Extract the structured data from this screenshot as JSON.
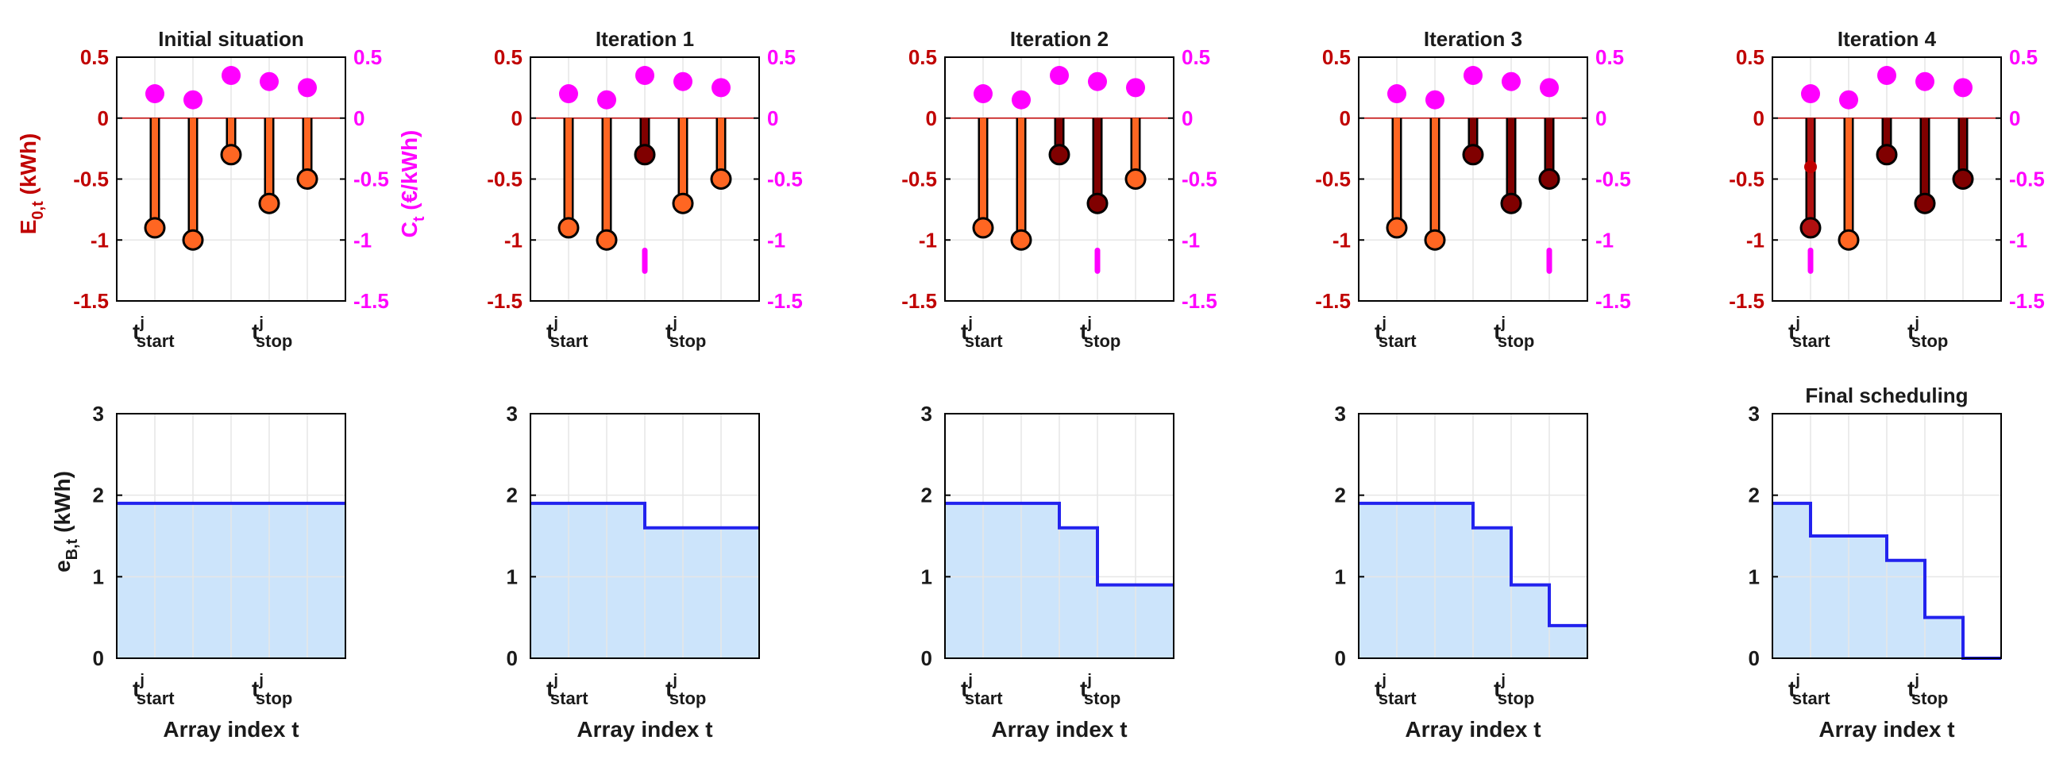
{
  "colors": {
    "energy_axis": "#c00000",
    "price_axis": "#ff00ff",
    "stem_orange": "#ff6622",
    "stem_dark": "#800000",
    "stem_mid": "#b01010",
    "step_line": "#2222ee",
    "area_fill": "#cce4fb",
    "grid": "#e6e6e6"
  },
  "labels": {
    "energy_ylabel_main": "E",
    "energy_ylabel_sub": "0,t",
    "energy_ylabel_unit": " (kWh)",
    "price_ylabel_main": "C",
    "price_ylabel_sub": "t",
    "price_ylabel_unit": " (€/kWh)",
    "battery_ylabel_main": "e",
    "battery_ylabel_sub": "B,t",
    "battery_ylabel_unit": " (kWh)",
    "xlabel": "Array index t",
    "t_letter": "t",
    "t_sup": "j",
    "t_start_sub": "start",
    "t_stop_sub": "stop"
  },
  "chart_data": [
    {
      "panel": "top-1",
      "type": "stem",
      "title": "Initial situation",
      "ylim_left": [
        -1.5,
        0.5
      ],
      "yticks_left": [
        0.5,
        0,
        -0.5,
        -1,
        -1.5
      ],
      "ylim_right": [
        -1.5,
        0.5
      ],
      "yticks_right": [
        0.5,
        0,
        -0.5,
        -1,
        -1.5
      ],
      "x": [
        1,
        2,
        3,
        4,
        5
      ],
      "xlim": [
        0,
        6
      ],
      "energy": [
        -0.9,
        -1.0,
        -0.3,
        -0.7,
        -0.5
      ],
      "energy_state": [
        "orange",
        "orange",
        "orange",
        "orange",
        "orange"
      ],
      "price": [
        0.2,
        0.15,
        0.35,
        0.3,
        0.25
      ],
      "price_marker": null,
      "extra_marker": null
    },
    {
      "panel": "top-2",
      "type": "stem",
      "title": "Iteration 1",
      "ylim_left": [
        -1.5,
        0.5
      ],
      "yticks_left": [
        0.5,
        0,
        -0.5,
        -1,
        -1.5
      ],
      "ylim_right": [
        -1.5,
        0.5
      ],
      "yticks_right": [
        0.5,
        0,
        -0.5,
        -1,
        -1.5
      ],
      "x": [
        1,
        2,
        3,
        4,
        5
      ],
      "xlim": [
        0,
        6
      ],
      "energy": [
        -0.9,
        -1.0,
        -0.3,
        -0.7,
        -0.5
      ],
      "energy_state": [
        "orange",
        "orange",
        "dark",
        "orange",
        "orange"
      ],
      "price": [
        0.2,
        0.15,
        0.35,
        0.3,
        0.25
      ],
      "price_marker": {
        "x": 3,
        "y": -1.17
      },
      "extra_marker": null
    },
    {
      "panel": "top-3",
      "type": "stem",
      "title": "Iteration 2",
      "ylim_left": [
        -1.5,
        0.5
      ],
      "yticks_left": [
        0.5,
        0,
        -0.5,
        -1,
        -1.5
      ],
      "ylim_right": [
        -1.5,
        0.5
      ],
      "yticks_right": [
        0.5,
        0,
        -0.5,
        -1,
        -1.5
      ],
      "x": [
        1,
        2,
        3,
        4,
        5
      ],
      "xlim": [
        0,
        6
      ],
      "energy": [
        -0.9,
        -1.0,
        -0.3,
        -0.7,
        -0.5
      ],
      "energy_state": [
        "orange",
        "orange",
        "dark",
        "dark",
        "orange"
      ],
      "price": [
        0.2,
        0.15,
        0.35,
        0.3,
        0.25
      ],
      "price_marker": {
        "x": 4,
        "y": -1.17
      },
      "extra_marker": null
    },
    {
      "panel": "top-4",
      "type": "stem",
      "title": "Iteration 3",
      "ylim_left": [
        -1.5,
        0.5
      ],
      "yticks_left": [
        0.5,
        0,
        -0.5,
        -1,
        -1.5
      ],
      "ylim_right": [
        -1.5,
        0.5
      ],
      "yticks_right": [
        0.5,
        0,
        -0.5,
        -1,
        -1.5
      ],
      "x": [
        1,
        2,
        3,
        4,
        5
      ],
      "xlim": [
        0,
        6
      ],
      "energy": [
        -0.9,
        -1.0,
        -0.3,
        -0.7,
        -0.5
      ],
      "energy_state": [
        "orange",
        "orange",
        "dark",
        "dark",
        "dark"
      ],
      "price": [
        0.2,
        0.15,
        0.35,
        0.3,
        0.25
      ],
      "price_marker": {
        "x": 5,
        "y": -1.17
      },
      "extra_marker": null
    },
    {
      "panel": "top-5",
      "type": "stem",
      "title": "Iteration 4",
      "ylim_left": [
        -1.5,
        0.5
      ],
      "yticks_left": [
        0.5,
        0,
        -0.5,
        -1,
        -1.5
      ],
      "ylim_right": [
        -1.5,
        0.5
      ],
      "yticks_right": [
        0.5,
        0,
        -0.5,
        -1,
        -1.5
      ],
      "x": [
        1,
        2,
        3,
        4,
        5
      ],
      "xlim": [
        0,
        6
      ],
      "energy": [
        -0.9,
        -1.0,
        -0.3,
        -0.7,
        -0.5
      ],
      "energy_state": [
        "mid",
        "orange",
        "dark",
        "dark",
        "dark"
      ],
      "price": [
        0.2,
        0.15,
        0.35,
        0.3,
        0.25
      ],
      "price_marker": {
        "x": 1,
        "y": -1.17
      },
      "extra_marker": {
        "x": 1,
        "y": -0.4
      }
    },
    {
      "panel": "bottom-1",
      "type": "area",
      "title": "",
      "ylim": [
        0,
        3
      ],
      "yticks": [
        3,
        2,
        1,
        0
      ],
      "xlim": [
        0,
        6
      ],
      "step_x": [
        0,
        6
      ],
      "step_y": [
        1.9,
        1.9
      ]
    },
    {
      "panel": "bottom-2",
      "type": "area",
      "title": "",
      "ylim": [
        0,
        3
      ],
      "yticks": [
        3,
        2,
        1,
        0
      ],
      "xlim": [
        0,
        6
      ],
      "step_x": [
        0,
        3,
        3,
        6
      ],
      "step_y": [
        1.9,
        1.9,
        1.6,
        1.6
      ]
    },
    {
      "panel": "bottom-3",
      "type": "area",
      "title": "",
      "ylim": [
        0,
        3
      ],
      "yticks": [
        3,
        2,
        1,
        0
      ],
      "xlim": [
        0,
        6
      ],
      "step_x": [
        0,
        3,
        3,
        4,
        4,
        6
      ],
      "step_y": [
        1.9,
        1.9,
        1.6,
        1.6,
        0.9,
        0.9
      ]
    },
    {
      "panel": "bottom-4",
      "type": "area",
      "title": "",
      "ylim": [
        0,
        3
      ],
      "yticks": [
        3,
        2,
        1,
        0
      ],
      "xlim": [
        0,
        6
      ],
      "step_x": [
        0,
        3,
        3,
        4,
        4,
        5,
        5,
        6
      ],
      "step_y": [
        1.9,
        1.9,
        1.6,
        1.6,
        0.9,
        0.9,
        0.4,
        0.4
      ]
    },
    {
      "panel": "bottom-5",
      "type": "area",
      "title": "Final scheduling",
      "ylim": [
        0,
        3
      ],
      "yticks": [
        3,
        2,
        1,
        0
      ],
      "xlim": [
        0,
        6
      ],
      "step_x": [
        0,
        1,
        1,
        3,
        3,
        4,
        4,
        5,
        5,
        6
      ],
      "step_y": [
        1.9,
        1.9,
        1.5,
        1.5,
        1.2,
        1.2,
        0.5,
        0.5,
        0,
        0
      ]
    }
  ]
}
